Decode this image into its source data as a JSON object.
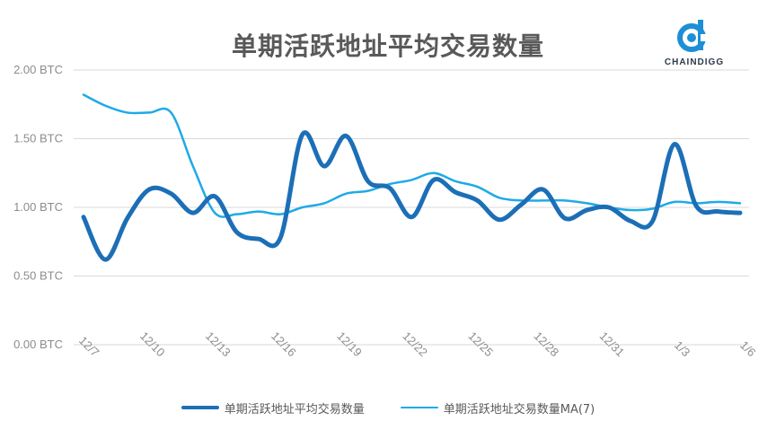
{
  "chart_data": {
    "type": "line",
    "title": "单期活跃地址平均交易数量",
    "categories": [
      "12/7",
      "12/8",
      "12/9",
      "12/10",
      "12/11",
      "12/12",
      "12/13",
      "12/14",
      "12/15",
      "12/16",
      "12/17",
      "12/18",
      "12/19",
      "12/20",
      "12/21",
      "12/22",
      "12/23",
      "12/24",
      "12/25",
      "12/26",
      "12/27",
      "12/28",
      "12/29",
      "12/30",
      "12/31",
      "1/1",
      "1/2",
      "1/3",
      "1/4",
      "1/5",
      "1/6"
    ],
    "x_tick_labels": [
      "12/7",
      "12/10",
      "12/13",
      "12/16",
      "12/19",
      "12/22",
      "12/25",
      "12/28",
      "12/31",
      "1/3",
      "1/6"
    ],
    "y_tick_labels": [
      "0.00 BTC",
      "0.50 BTC",
      "1.00 BTC",
      "1.50 BTC",
      "2.00 BTC"
    ],
    "ylim": [
      0,
      2
    ],
    "grid": true,
    "legend_position": "bottom",
    "series": [
      {
        "name": "单期活跃地址平均交易数量",
        "color": "#1c6fb6",
        "values": [
          0.93,
          0.62,
          0.92,
          1.13,
          1.1,
          0.96,
          1.08,
          0.82,
          0.77,
          0.78,
          1.53,
          1.3,
          1.52,
          1.19,
          1.14,
          0.93,
          1.2,
          1.11,
          1.05,
          0.91,
          1.02,
          1.13,
          0.92,
          0.98,
          1.0,
          0.9,
          0.9,
          1.46,
          1.01,
          0.97,
          0.96
        ]
      },
      {
        "name": "单期活跃地址交易数量MA(7)",
        "color": "#1eaae7",
        "values": [
          1.82,
          1.74,
          1.69,
          1.69,
          1.69,
          1.3,
          0.96,
          0.95,
          0.97,
          0.95,
          1.0,
          1.03,
          1.1,
          1.12,
          1.17,
          1.2,
          1.25,
          1.19,
          1.15,
          1.07,
          1.05,
          1.05,
          1.05,
          1.03,
          1.0,
          0.98,
          0.99,
          1.04,
          1.03,
          1.04,
          1.03
        ]
      }
    ]
  },
  "logo": {
    "text": "CHAINDIGG",
    "color": "#1e8fd6"
  }
}
